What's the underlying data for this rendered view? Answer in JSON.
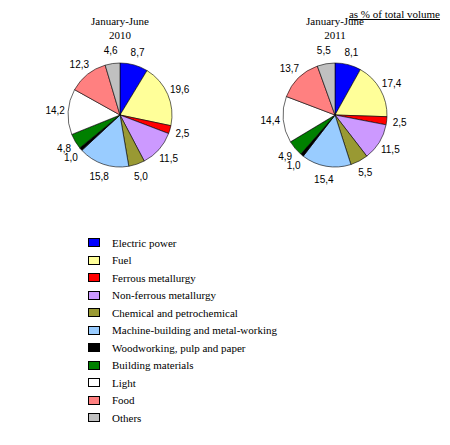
{
  "chart_data": [
    {
      "type": "pie",
      "title": "January-June",
      "subtitle": "2010",
      "categories": [
        "Electric power",
        "Fuel",
        "Ferrous metallurgy",
        "Non-ferrous metallurgy",
        "Chemical and petrochemical",
        "Machine-building and metal-working",
        "Woodworking, pulp and paper",
        "Building materials",
        "Light",
        "Food",
        "Others"
      ],
      "values": [
        8.7,
        19.6,
        2.5,
        11.5,
        5.0,
        15.8,
        1.0,
        4.8,
        14.2,
        12.3,
        4.6
      ],
      "value_labels": [
        "8,7",
        "19,6",
        "2,5",
        "11,5",
        "5,0",
        "15,8",
        "1,0",
        "4,8",
        "14,2",
        "12,3",
        "4,6"
      ],
      "colors": [
        "#0000ff",
        "#ffff99",
        "#ff0000",
        "#cc99ff",
        "#999933",
        "#99ccff",
        "#000000",
        "#008000",
        "#ffffff",
        "#ff8080",
        "#c0c0c0"
      ],
      "data_labels": true,
      "legend": "bottom"
    },
    {
      "type": "pie",
      "title": "January-June",
      "subtitle": "2011",
      "categories": [
        "Electric power",
        "Fuel",
        "Ferrous metallurgy",
        "Non-ferrous metallurgy",
        "Chemical and petrochemical",
        "Machine-building and metal-working",
        "Woodworking, pulp and paper",
        "Building materials",
        "Light",
        "Food",
        "Others"
      ],
      "values": [
        8.1,
        17.4,
        2.5,
        11.5,
        5.5,
        15.4,
        1.0,
        4.9,
        14.4,
        13.7,
        5.5
      ],
      "value_labels": [
        "8,1",
        "17,4",
        "2,5",
        "11,5",
        "5,5",
        "15,4",
        "1,0",
        "4,9",
        "14,4",
        "13,7",
        "5,5"
      ],
      "colors": [
        "#0000ff",
        "#ffff99",
        "#ff0000",
        "#cc99ff",
        "#999933",
        "#99ccff",
        "#000000",
        "#008000",
        "#ffffff",
        "#ff8080",
        "#c0c0c0"
      ],
      "data_labels": true
    }
  ],
  "note": "as % of total volume"
}
